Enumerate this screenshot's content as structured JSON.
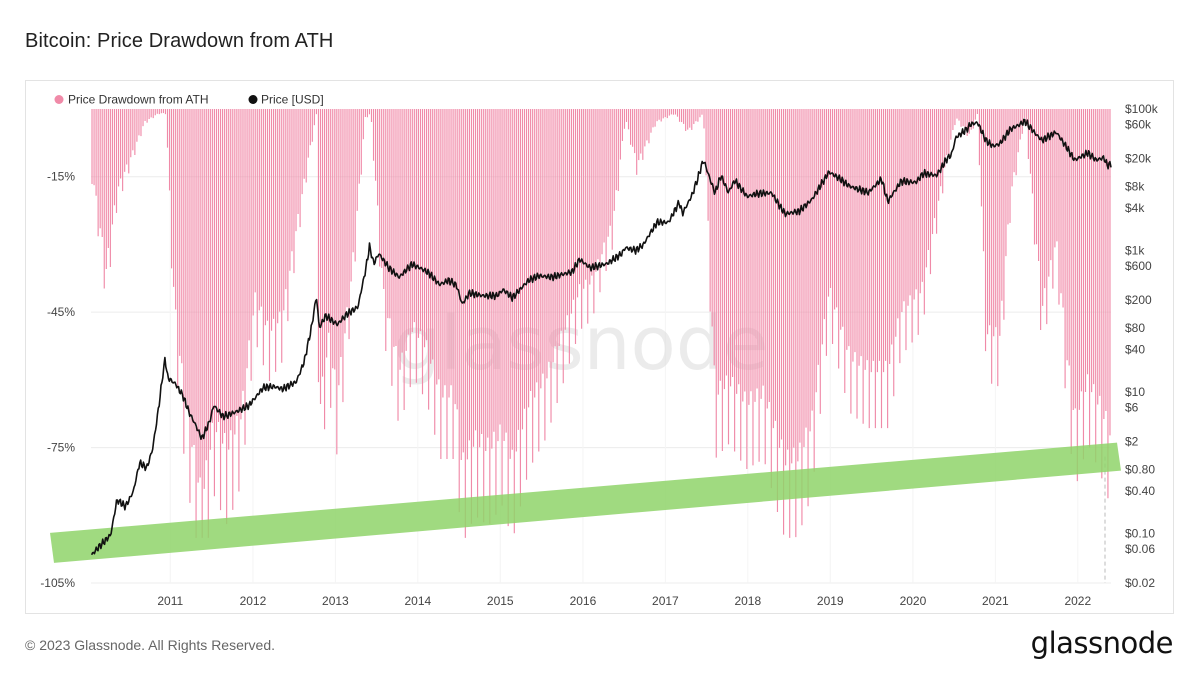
{
  "page": {
    "title": "Bitcoin: Price Drawdown from ATH",
    "copyright": "© 2023 Glassnode. All Rights Reserved.",
    "brand": "glassnode",
    "watermark": "glassnode"
  },
  "colors": {
    "drawdown": "#f08aa8",
    "price": "#111111",
    "support_band": "#8fd46a",
    "grid": "#ececec"
  },
  "chart_data": {
    "type": "bar",
    "title": "Bitcoin: Price Drawdown from ATH",
    "legend": {
      "placement": "top-left",
      "entries": [
        "Price Drawdown from ATH",
        "Price [USD]"
      ]
    },
    "grid": true,
    "x_range": [
      "2010-07-15",
      "2022-11-25"
    ],
    "x_ticks": [
      "2011",
      "2012",
      "2013",
      "2014",
      "2015",
      "2016",
      "2017",
      "2018",
      "2019",
      "2020",
      "2021",
      "2022"
    ],
    "y_left": {
      "ticks": [
        "-15%",
        "-45%",
        "-75%",
        "-105%"
      ],
      "tick_values": [
        -15,
        -45,
        -75,
        -105
      ]
    },
    "y_right": {
      "scale": "log",
      "ticks": [
        "$100k",
        "$60k",
        "$20k",
        "$8k",
        "$4k",
        "$1k",
        "$600",
        "$200",
        "$80",
        "$40",
        "$10",
        "$6",
        "$2",
        "$0.80",
        "$0.40",
        "$0.10",
        "$0.06",
        "$0.02"
      ],
      "tick_values": [
        100000,
        60000,
        20000,
        8000,
        4000,
        1000,
        600,
        200,
        80,
        40,
        10,
        6,
        2,
        0.8,
        0.4,
        0.1,
        0.06,
        0.02
      ]
    },
    "series": [
      {
        "name": "Price Drawdown from ATH",
        "type": "bar",
        "color": "#f08aa8",
        "x": [
          "2010-07-18",
          "2010-09-20",
          "2010-11-08",
          "2011-01-10",
          "2011-03-10",
          "2011-05-10",
          "2011-06-12",
          "2011-07-20",
          "2011-09-01",
          "2011-10-15",
          "2011-11-18",
          "2012-01-10",
          "2012-03-10",
          "2012-05-10",
          "2012-07-10",
          "2012-09-10",
          "2012-11-10",
          "2013-01-10",
          "2013-03-01",
          "2013-04-09",
          "2013-04-20",
          "2013-06-01",
          "2013-07-10",
          "2013-09-10",
          "2013-11-10",
          "2013-12-05",
          "2014-02-01",
          "2014-04-10",
          "2014-06-10",
          "2014-08-10",
          "2014-10-10",
          "2014-12-10",
          "2015-01-14",
          "2015-03-10",
          "2015-05-10",
          "2015-07-10",
          "2015-08-24",
          "2015-11-05",
          "2016-01-20",
          "2016-06-17",
          "2016-08-10",
          "2016-11-10",
          "2017-01-05",
          "2017-02-25",
          "2017-05-20",
          "2017-08-10",
          "2017-10-10",
          "2017-12-17",
          "2018-02-06",
          "2018-04-10",
          "2018-06-25",
          "2018-09-10",
          "2018-11-25",
          "2018-12-15",
          "2019-02-10",
          "2019-04-10",
          "2019-06-26",
          "2019-09-25",
          "2019-12-17",
          "2020-03-12",
          "2020-05-10",
          "2020-08-10",
          "2020-11-25",
          "2021-01-08",
          "2021-03-10",
          "2021-04-14",
          "2021-05-23",
          "2021-07-20",
          "2021-09-07",
          "2021-11-10",
          "2022-01-24",
          "2022-03-28",
          "2022-05-12",
          "2022-06-18",
          "2022-08-15",
          "2022-10-10",
          "2022-11-21"
        ],
        "values": [
          -14,
          -38,
          -19,
          -11,
          -3,
          -1,
          -1,
          -47,
          -68,
          -83,
          -93,
          -75,
          -81,
          -73,
          -45,
          -53,
          -49,
          -28,
          -12,
          -1,
          -72,
          -55,
          -68,
          -40,
          -2,
          -1,
          -45,
          -62,
          -52,
          -57,
          -68,
          -68,
          -85,
          -79,
          -81,
          -77,
          -84,
          -70,
          -64,
          -43,
          -41,
          -27,
          -2,
          -13,
          -3,
          -1,
          -5,
          -1,
          -68,
          -65,
          -70,
          -68,
          -81,
          -84,
          -83,
          -75,
          -43,
          -59,
          -62,
          -62,
          -48,
          -43,
          -12,
          -2,
          -6,
          -1,
          -53,
          -54,
          -20,
          -1,
          -47,
          -31,
          -58,
          -74,
          -65,
          -71,
          -77
        ]
      },
      {
        "name": "Price [USD]",
        "type": "line",
        "color": "#111111",
        "x": [
          "2010-07-18",
          "2010-08-20",
          "2010-10-10",
          "2010-11-08",
          "2010-12-15",
          "2011-01-20",
          "2011-02-15",
          "2011-03-20",
          "2011-04-15",
          "2011-05-15",
          "2011-06-08",
          "2011-06-20",
          "2011-07-25",
          "2011-08-25",
          "2011-09-25",
          "2011-10-20",
          "2011-11-18",
          "2011-12-20",
          "2012-01-10",
          "2012-02-20",
          "2012-04-15",
          "2012-06-15",
          "2012-08-15",
          "2012-09-30",
          "2012-11-10",
          "2013-01-10",
          "2013-02-15",
          "2013-03-20",
          "2013-04-09",
          "2013-04-20",
          "2013-05-20",
          "2013-07-10",
          "2013-08-20",
          "2013-10-10",
          "2013-11-15",
          "2013-11-30",
          "2013-12-18",
          "2014-01-10",
          "2014-02-25",
          "2014-04-10",
          "2014-06-05",
          "2014-07-15",
          "2014-08-20",
          "2014-10-05",
          "2014-11-15",
          "2014-12-20",
          "2015-01-14",
          "2015-02-15",
          "2015-04-15",
          "2015-06-15",
          "2015-07-15",
          "2015-08-24",
          "2015-11-04",
          "2015-12-20",
          "2016-02-15",
          "2016-05-15",
          "2016-06-17",
          "2016-08-03",
          "2016-10-15",
          "2016-12-20",
          "2017-01-05",
          "2017-02-20",
          "2017-03-25",
          "2017-05-25",
          "2017-07-15",
          "2017-09-01",
          "2017-09-15",
          "2017-11-01",
          "2017-12-17",
          "2018-02-06",
          "2018-03-05",
          "2018-04-06",
          "2018-05-05",
          "2018-06-28",
          "2018-08-15",
          "2018-10-15",
          "2018-11-25",
          "2018-12-15",
          "2019-02-15",
          "2019-04-10",
          "2019-06-26",
          "2019-08-15",
          "2019-09-25",
          "2019-12-17",
          "2020-02-14",
          "2020-03-12",
          "2020-05-10",
          "2020-07-15",
          "2020-08-17",
          "2020-10-15",
          "2020-11-25",
          "2020-12-20",
          "2021-01-08",
          "2021-02-20",
          "2021-03-14",
          "2021-04-14",
          "2021-05-23",
          "2021-06-22",
          "2021-07-20",
          "2021-09-07",
          "2021-10-20",
          "2021-11-10",
          "2021-12-20",
          "2022-01-24",
          "2022-03-28",
          "2022-05-12",
          "2022-06-18",
          "2022-08-15",
          "2022-09-20",
          "2022-10-25",
          "2022-11-09",
          "2022-11-25"
        ],
        "values": [
          0.05,
          0.065,
          0.095,
          0.3,
          0.24,
          0.4,
          1.0,
          0.85,
          1.6,
          7.5,
          30,
          16,
          13,
          9,
          5,
          3.5,
          2.2,
          3.6,
          6.5,
          4.5,
          5.2,
          6.5,
          11.5,
          12,
          11,
          14,
          28,
          90,
          230,
          80,
          120,
          90,
          125,
          160,
          600,
          1150,
          650,
          900,
          560,
          420,
          640,
          560,
          480,
          330,
          380,
          320,
          175,
          250,
          230,
          230,
          280,
          215,
          380,
          440,
          420,
          500,
          750,
          570,
          650,
          900,
          1100,
          1000,
          1200,
          2500,
          2500,
          4800,
          3300,
          6500,
          19000,
          6500,
          11500,
          6600,
          9800,
          5800,
          6400,
          6500,
          4000,
          3300,
          3600,
          5200,
          12900,
          10200,
          8100,
          6600,
          10300,
          4900,
          9500,
          9200,
          12300,
          11500,
          19000,
          23000,
          40000,
          50000,
          61000,
          64000,
          35000,
          30000,
          32000,
          52000,
          61000,
          67500,
          47000,
          36000,
          47000,
          29000,
          19000,
          24000,
          19000,
          20500,
          16000,
          16500
        ],
        "log_scale": true
      }
    ],
    "annotations": [
      {
        "type": "band",
        "label": "",
        "x_start": "2010-06-01",
        "x_end": "2022-12-31",
        "y_start_pct": -97,
        "y_end_pct": -77,
        "color": "#8fd46a"
      }
    ]
  }
}
